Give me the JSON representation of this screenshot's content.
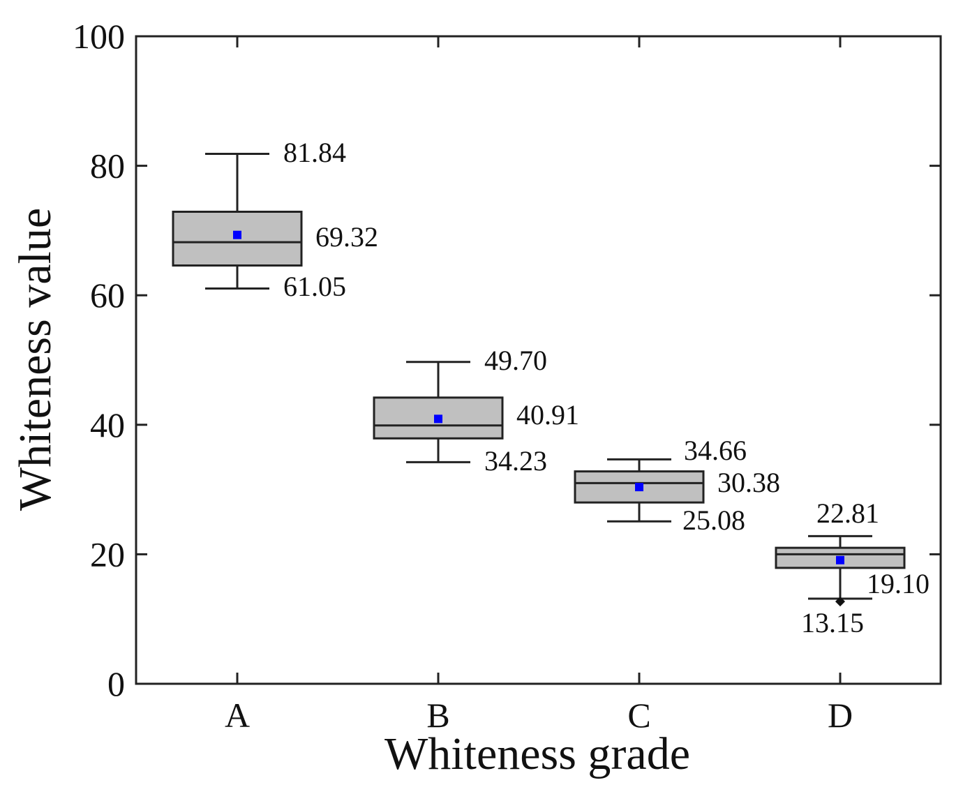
{
  "chart_data": {
    "type": "box",
    "title": "",
    "xlabel": "Whiteness grade",
    "ylabel": "Whiteness value",
    "ylim": [
      0,
      100
    ],
    "yticks": [
      0,
      20,
      40,
      60,
      80,
      100
    ],
    "categories": [
      "A",
      "B",
      "C",
      "D"
    ],
    "box_fill": "#c0c0c0",
    "mean_color": "#0000ff",
    "boxes": [
      {
        "category": "A",
        "min": 61.05,
        "q1": 64.6,
        "median": 68.2,
        "q3": 72.9,
        "max": 81.84,
        "mean": 69.32,
        "labels": {
          "max": "81.84",
          "mean": "69.32",
          "min": "61.05"
        }
      },
      {
        "category": "B",
        "min": 34.23,
        "q1": 37.9,
        "median": 39.9,
        "q3": 44.2,
        "max": 49.7,
        "mean": 40.91,
        "labels": {
          "max": "49.70",
          "mean": "40.91",
          "min": "34.23"
        }
      },
      {
        "category": "C",
        "min": 25.08,
        "q1": 28.0,
        "median": 31.0,
        "q3": 32.8,
        "max": 34.66,
        "mean": 30.38,
        "labels": {
          "max": "34.66",
          "mean": "30.38",
          "min": "25.08"
        }
      },
      {
        "category": "D",
        "min": 13.15,
        "q1": 17.9,
        "median": 20.0,
        "q3": 21.0,
        "max": 22.81,
        "mean": 19.1,
        "outlier": 12.7,
        "labels": {
          "max": "22.81",
          "mean": "19.10",
          "min": "13.15"
        }
      }
    ]
  }
}
